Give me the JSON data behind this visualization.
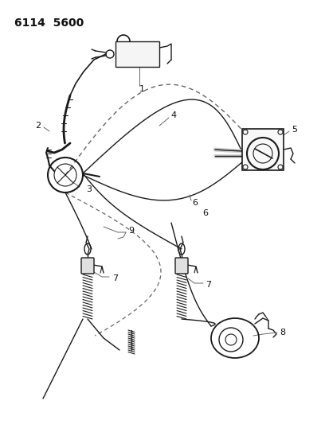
{
  "title": "6114  5600",
  "bg_color": "#ffffff",
  "line_color": "#1a1a1a",
  "dash_color": "#666666",
  "label_color": "#111111",
  "figsize": [
    4.08,
    5.33
  ],
  "dpi": 100,
  "title_fontsize": 10,
  "label_fontsize": 7.5
}
